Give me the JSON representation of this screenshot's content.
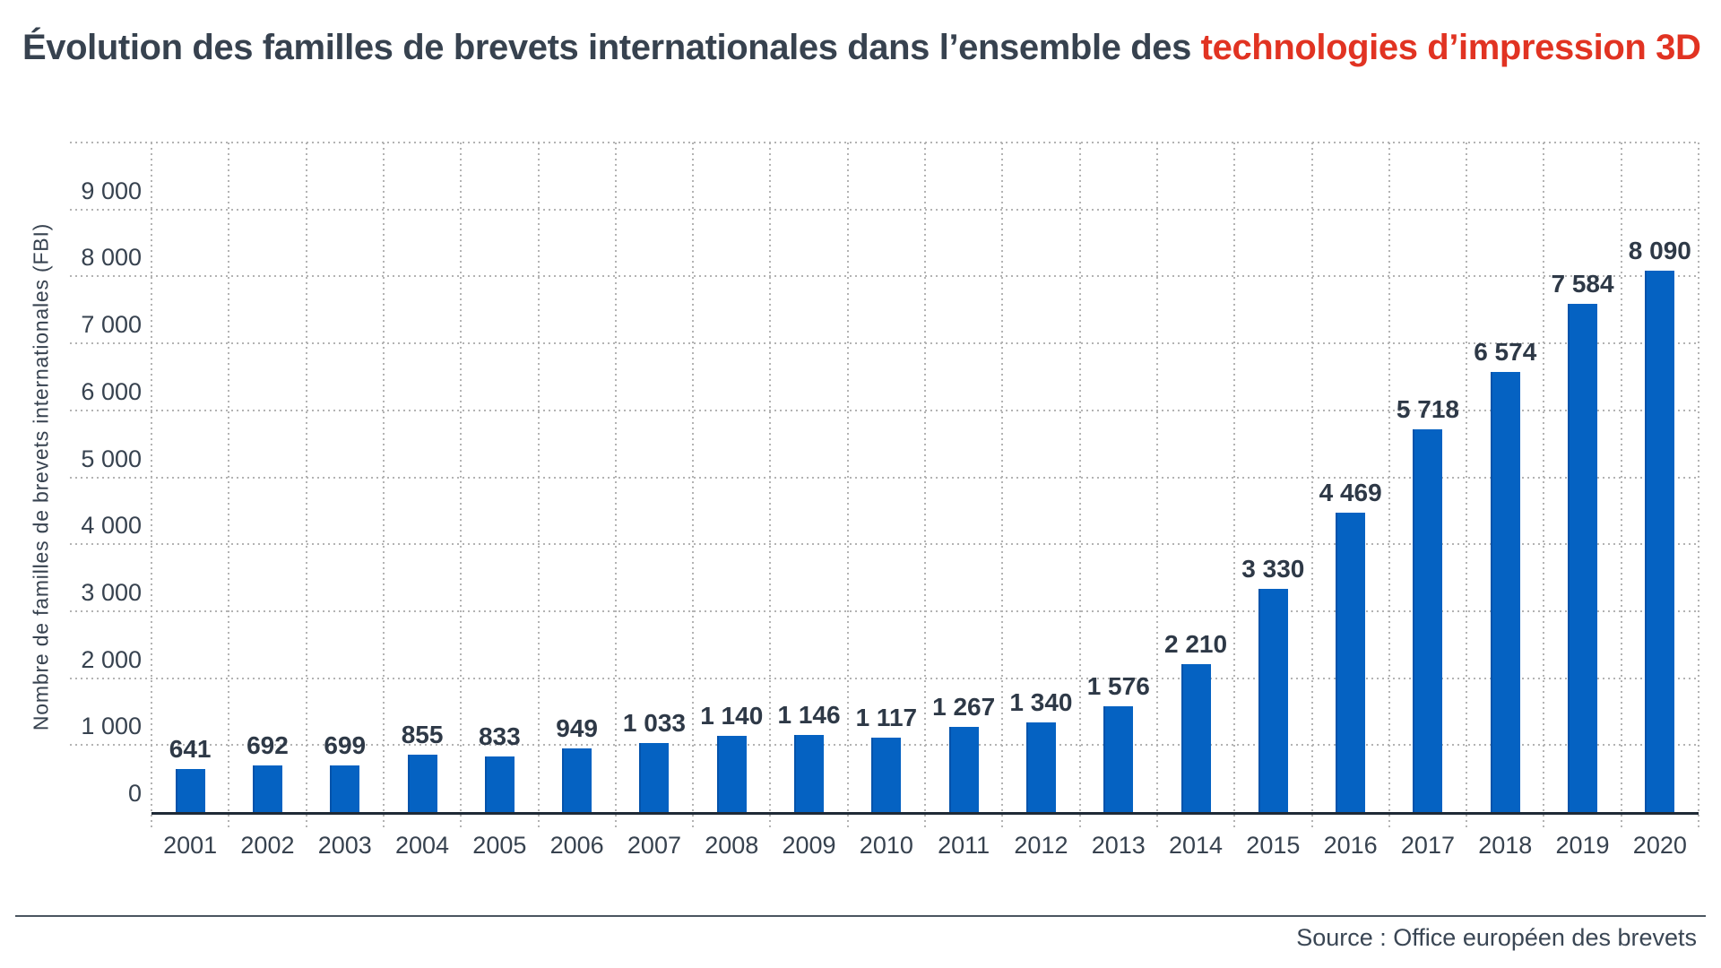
{
  "title": {
    "prefix": "Évolution des familles de brevets internationales dans l’ensemble des ",
    "highlight": "technologies d’impression 3D"
  },
  "source": "Source : Office européen des brevets",
  "colors": {
    "bar": "#0562C2",
    "bar_edge": "#0453AB",
    "title_text": "#37424F",
    "title_highlight": "#E13322",
    "grid": "#B3B3B3",
    "axis_line": "#1F2A36",
    "text": "#37424F"
  },
  "chart_data": {
    "type": "bar",
    "title": "Évolution des familles de brevets internationales dans l’ensemble des technologies d’impression 3D",
    "ylabel": "Nombre de familles de brevets internationales (FBI)",
    "xlabel": "",
    "categories": [
      "2001",
      "2002",
      "2003",
      "2004",
      "2005",
      "2006",
      "2007",
      "2008",
      "2009",
      "2010",
      "2011",
      "2012",
      "2013",
      "2014",
      "2015",
      "2016",
      "2017",
      "2018",
      "2019",
      "2020"
    ],
    "values": [
      641,
      692,
      699,
      855,
      833,
      949,
      1033,
      1140,
      1146,
      1117,
      1267,
      1340,
      1576,
      2210,
      3330,
      4469,
      5718,
      6574,
      7584,
      8090
    ],
    "value_labels": [
      "641",
      "692",
      "699",
      "855",
      "833",
      "949",
      "1 033",
      "1 140",
      "1 146",
      "1 117",
      "1 267",
      "1 340",
      "1 576",
      "2 210",
      "3 330",
      "4 469",
      "5 718",
      "6 574",
      "7 584",
      "8 090"
    ],
    "y_ticks": [
      0,
      1000,
      2000,
      3000,
      4000,
      5000,
      6000,
      7000,
      8000,
      9000
    ],
    "y_tick_labels": [
      "0",
      "1 000",
      "2 000",
      "3 000",
      "4 000",
      "5 000",
      "6 000",
      "7 000",
      "8 000",
      "9 000"
    ],
    "ylim": [
      0,
      10000
    ],
    "grid": "dotted",
    "legend": "none"
  }
}
